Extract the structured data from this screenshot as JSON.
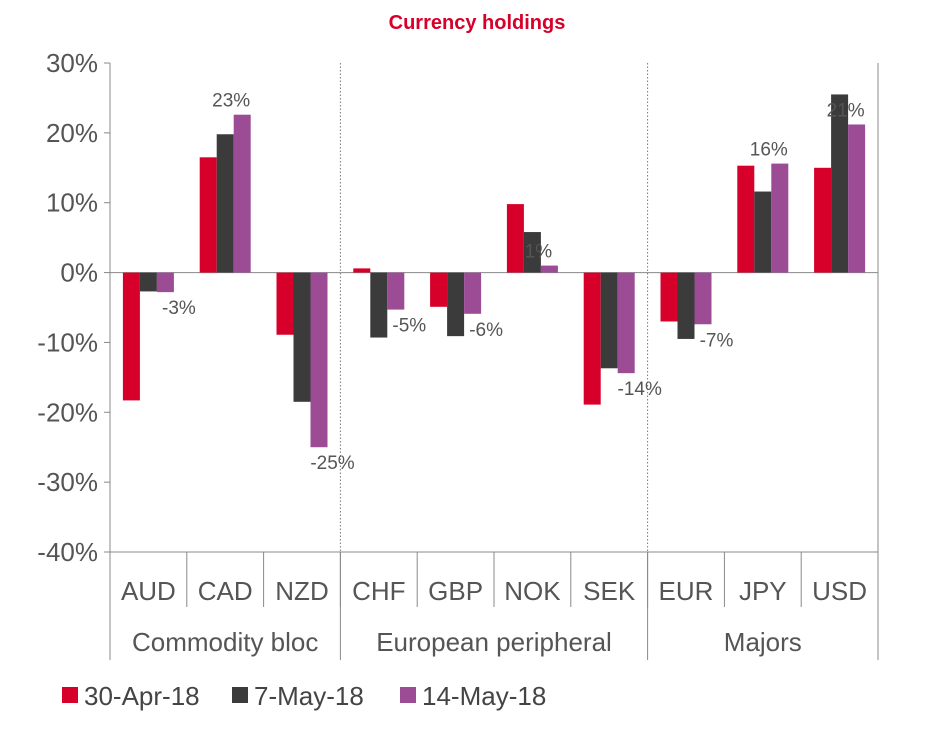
{
  "chart_data": {
    "type": "bar",
    "title": "Currency holdings",
    "categories": [
      "AUD",
      "CAD",
      "NZD",
      "CHF",
      "GBP",
      "NOK",
      "SEK",
      "EUR",
      "JPY",
      "USD"
    ],
    "groups": [
      {
        "label": "Commodity bloc",
        "categories": [
          "AUD",
          "CAD",
          "NZD"
        ]
      },
      {
        "label": "European peripheral",
        "categories": [
          "CHF",
          "GBP",
          "NOK",
          "SEK"
        ]
      },
      {
        "label": "Majors",
        "categories": [
          "EUR",
          "JPY",
          "USD"
        ]
      }
    ],
    "series": [
      {
        "name": "30-Apr-18",
        "color": "#d6002a",
        "values": [
          -18.3,
          16.5,
          -8.9,
          0.6,
          -4.9,
          9.8,
          -18.9,
          -7.0,
          15.3,
          15.0
        ]
      },
      {
        "name": "7-May-18",
        "color": "#3b3b3b",
        "values": [
          -2.7,
          19.8,
          -18.5,
          -9.3,
          -9.1,
          5.8,
          -13.7,
          -9.5,
          11.6,
          25.5
        ]
      },
      {
        "name": "14-May-18",
        "color": "#9b4c95",
        "values": [
          -2.8,
          22.6,
          -25.0,
          -5.3,
          -5.9,
          1.0,
          -14.4,
          -7.4,
          15.6,
          21.2
        ]
      }
    ],
    "data_labels": [
      "-3%",
      "23%",
      "-25%",
      "-5%",
      "-6%",
      "1%",
      "-14%",
      "-7%",
      "16%",
      "21%"
    ],
    "yticks": [
      "30%",
      "20%",
      "10%",
      "0%",
      "-10%",
      "-20%",
      "-30%",
      "-40%"
    ],
    "ylim": [
      -40,
      30
    ],
    "grid": false,
    "legend": "bottom-left"
  }
}
